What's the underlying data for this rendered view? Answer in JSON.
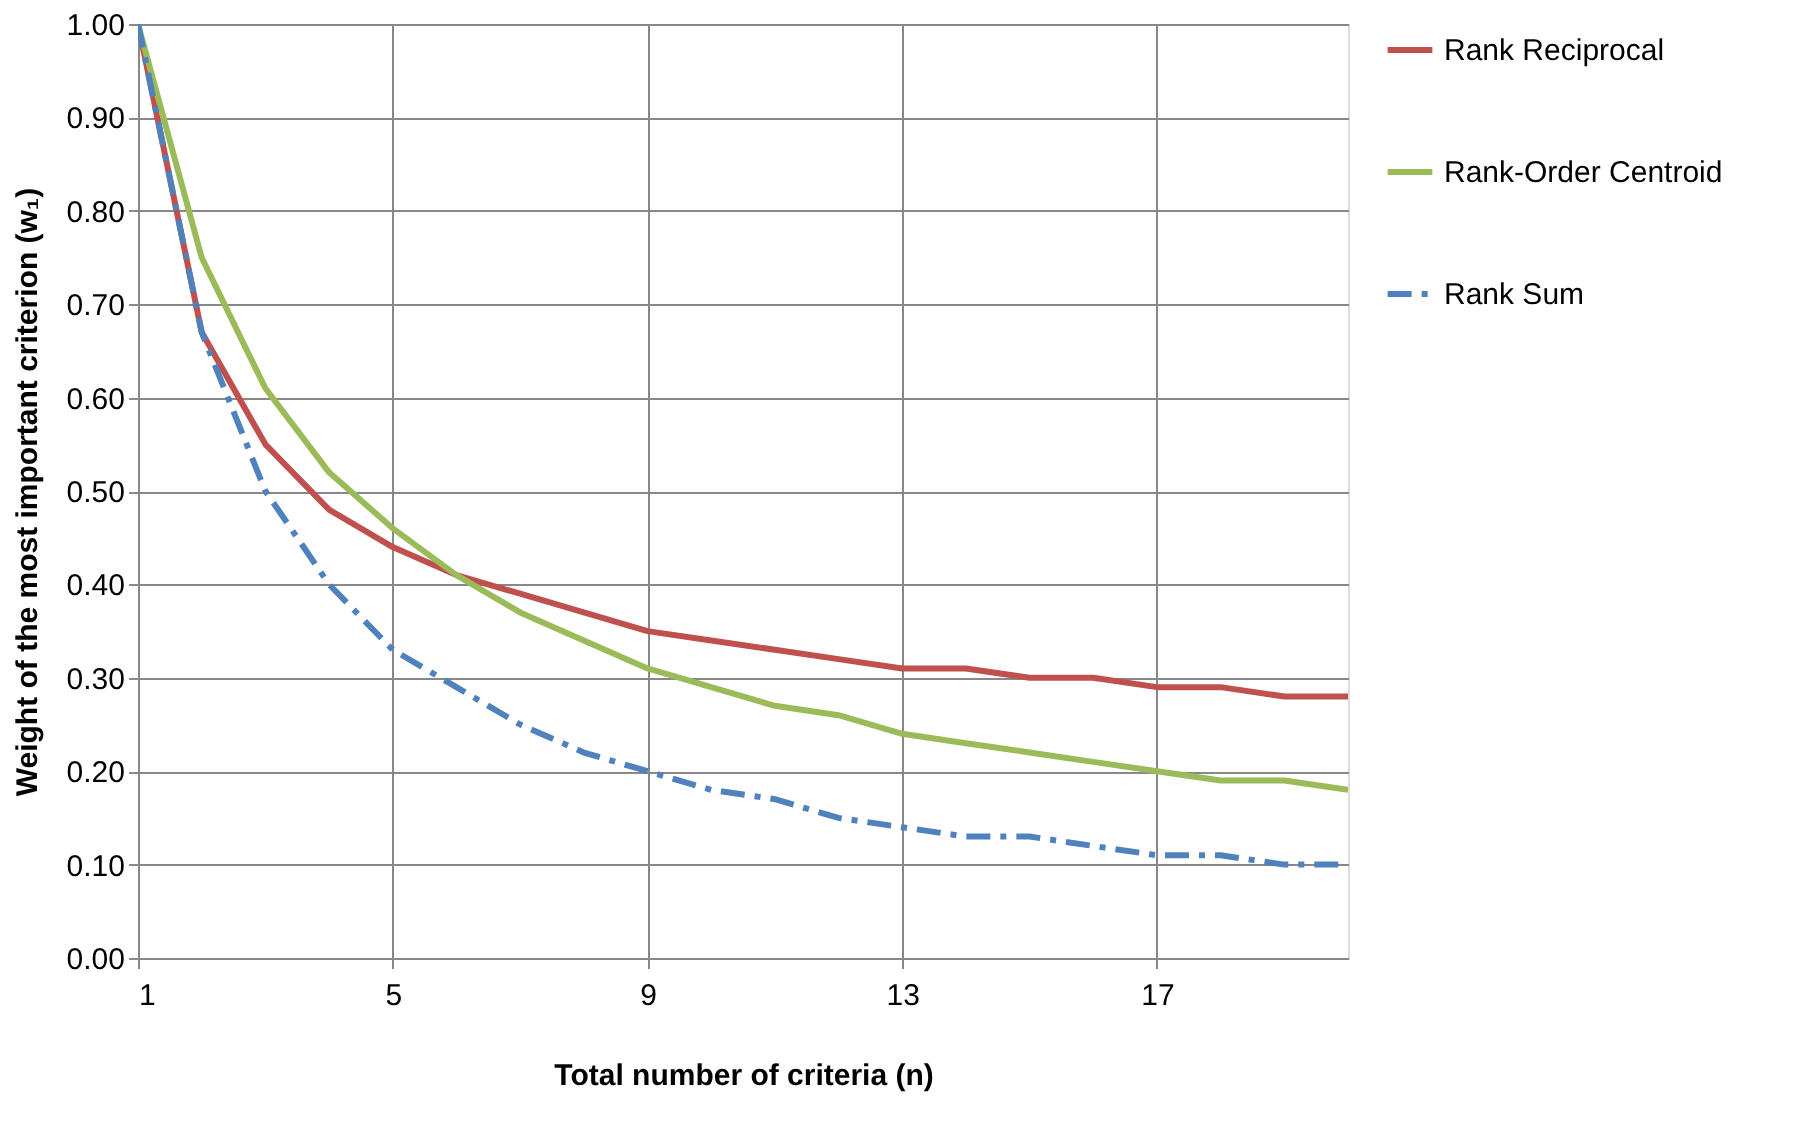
{
  "chart_data": {
    "type": "line",
    "xlabel": "Total number of criteria (n)",
    "ylabel": "Weight of the most important criterion (w₁)",
    "x": [
      1,
      2,
      3,
      4,
      5,
      6,
      7,
      8,
      9,
      10,
      11,
      12,
      13,
      14,
      15,
      16,
      17,
      18,
      19,
      20
    ],
    "series": [
      {
        "name": "Rank Reciprocal",
        "color": "#c0504d",
        "line_style": "solid",
        "values": [
          1.0,
          0.67,
          0.55,
          0.48,
          0.44,
          0.41,
          0.39,
          0.37,
          0.35,
          0.34,
          0.33,
          0.32,
          0.31,
          0.31,
          0.3,
          0.3,
          0.29,
          0.29,
          0.28,
          0.28
        ]
      },
      {
        "name": "Rank-Order Centroid",
        "color": "#9bbb59",
        "line_style": "solid",
        "values": [
          1.0,
          0.75,
          0.61,
          0.52,
          0.46,
          0.41,
          0.37,
          0.34,
          0.31,
          0.29,
          0.27,
          0.26,
          0.24,
          0.23,
          0.22,
          0.21,
          0.2,
          0.19,
          0.19,
          0.18
        ]
      },
      {
        "name": "Rank Sum",
        "color": "#4f81bd",
        "line_style": "dashed",
        "values": [
          1.0,
          0.67,
          0.5,
          0.4,
          0.33,
          0.29,
          0.25,
          0.22,
          0.2,
          0.18,
          0.17,
          0.15,
          0.14,
          0.13,
          0.13,
          0.12,
          0.11,
          0.11,
          0.1,
          0.1
        ]
      }
    ],
    "xlim": [
      1,
      20
    ],
    "xticks": [
      1,
      5,
      9,
      13,
      17
    ],
    "ylim": [
      0,
      1
    ],
    "yticks": [
      {
        "value": 0,
        "label": "0.00"
      },
      {
        "value": 0.1,
        "label": "0.10"
      },
      {
        "value": 0.2,
        "label": "0.20"
      },
      {
        "value": 0.3,
        "label": "0.30"
      },
      {
        "value": 0.4,
        "label": "0.40"
      },
      {
        "value": 0.5,
        "label": "0.50"
      },
      {
        "value": 0.6,
        "label": "0.60"
      },
      {
        "value": 0.7,
        "label": "0.70"
      },
      {
        "value": 0.8,
        "label": "0.80"
      },
      {
        "value": 0.9,
        "label": "0.90"
      },
      {
        "value": 1.0,
        "label": "1.00"
      }
    ],
    "grid": true,
    "legend": "right",
    "marker": "none"
  }
}
